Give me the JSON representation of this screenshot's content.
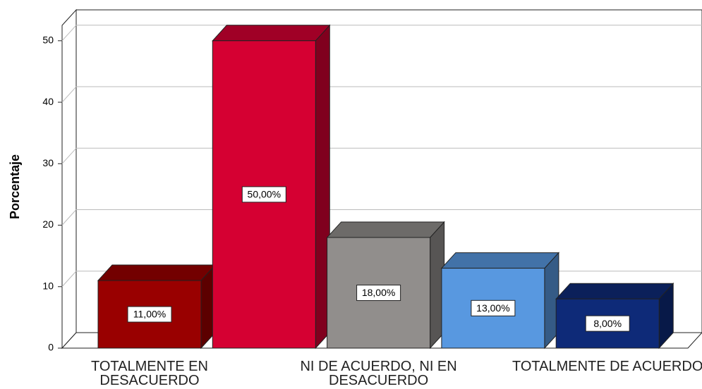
{
  "chart_data": {
    "type": "bar3d",
    "y_label": "Porcentaje",
    "categories": [
      "TOTALMENTE EN DESACUERDO",
      null,
      "NI DE ACUERDO, NI EN DESACUERDO",
      null,
      "TOTALMENTE DE ACUERDO"
    ],
    "values": [
      11,
      50,
      18,
      13,
      8
    ],
    "value_labels": [
      "11,00%",
      "50,00%",
      "18,00%",
      "13,00%",
      "8,00%"
    ],
    "colors": [
      "#990000",
      "#d50032",
      "#918e8c",
      "#5898e0",
      "#0e2a78"
    ],
    "ylim": [
      0,
      52.5
    ],
    "yticks": [
      0,
      10,
      20,
      30,
      40,
      50
    ],
    "grid": true
  }
}
